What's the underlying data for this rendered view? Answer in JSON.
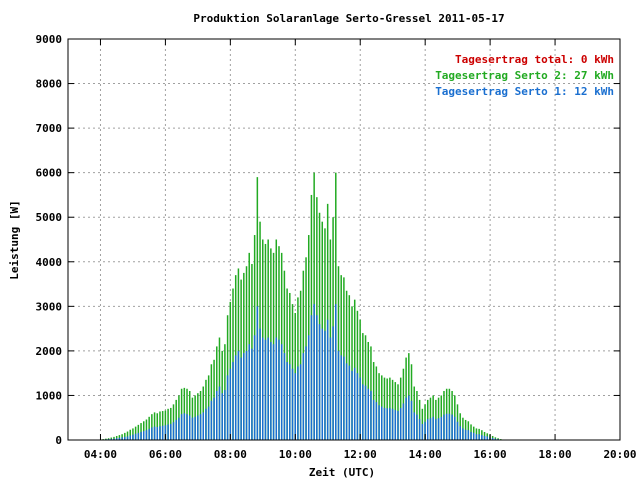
{
  "chart_data": {
    "type": "bar",
    "title": "Produktion Solaranlage Serto-Gressel 2011-05-17",
    "xlabel": "Zeit (UTC)",
    "ylabel": "Leistung [W]",
    "xlim": [
      3.0,
      20.0
    ],
    "ylim": [
      0,
      9000
    ],
    "x_ticks": [
      "04:00",
      "06:00",
      "08:00",
      "10:00",
      "12:00",
      "14:00",
      "16:00",
      "18:00",
      "20:00"
    ],
    "x_tick_values": [
      4,
      6,
      8,
      10,
      12,
      14,
      16,
      18,
      20
    ],
    "y_ticks": [
      "0",
      "1000",
      "2000",
      "3000",
      "4000",
      "5000",
      "6000",
      "7000",
      "8000",
      "9000"
    ],
    "y_tick_values": [
      0,
      1000,
      2000,
      3000,
      4000,
      5000,
      6000,
      7000,
      8000,
      9000
    ],
    "grid": true,
    "legend_position": "top-right",
    "legend": [
      {
        "label": "Tagesertrag total: 0 kWh",
        "color": "#cc0000"
      },
      {
        "label": "Tagesertrag Serto 2: 27 kWh",
        "color": "#22aa22"
      },
      {
        "label": "Tagesertrag Serto 1: 12 kWh",
        "color": "#1a6fd0"
      }
    ],
    "x_start": 4.0,
    "x_step": 0.0833,
    "series": [
      {
        "name": "Serto 2",
        "color": "#22aa22",
        "values": [
          0,
          20,
          30,
          40,
          55,
          70,
          90,
          110,
          130,
          160,
          190,
          230,
          260,
          300,
          340,
          380,
          420,
          460,
          520,
          580,
          620,
          600,
          640,
          650,
          660,
          700,
          720,
          800,
          900,
          1000,
          1150,
          1170,
          1150,
          1100,
          950,
          1000,
          1050,
          1100,
          1200,
          1350,
          1450,
          1700,
          1800,
          2100,
          2300,
          2000,
          2150,
          2800,
          3100,
          3400,
          3700,
          3850,
          3600,
          3750,
          3900,
          4200,
          3950,
          4600,
          5900,
          4900,
          4500,
          4400,
          4500,
          4300,
          4200,
          4500,
          4350,
          4200,
          3800,
          3400,
          3300,
          3050,
          2850,
          3200,
          3350,
          3800,
          4100,
          4600,
          5500,
          6000,
          5450,
          5100,
          4900,
          4750,
          5300,
          4500,
          5000,
          6000,
          3900,
          3700,
          3650,
          3350,
          3250,
          3000,
          3150,
          2900,
          2700,
          2400,
          2350,
          2200,
          2100,
          1750,
          1650,
          1500,
          1450,
          1400,
          1380,
          1400,
          1350,
          1300,
          1250,
          1400,
          1600,
          1850,
          1950,
          1700,
          1200,
          1100,
          900,
          700,
          800,
          900,
          950,
          1000,
          900,
          950,
          1000,
          1100,
          1150,
          1150,
          1100,
          1000,
          800,
          600,
          500,
          450,
          420,
          350,
          300,
          260,
          250,
          220,
          180,
          150,
          120,
          90,
          60,
          40,
          20,
          10
        ]
      },
      {
        "name": "Serto 1",
        "color": "#1a6fd0",
        "values": [
          0,
          10,
          15,
          20,
          25,
          30,
          40,
          50,
          60,
          70,
          80,
          100,
          120,
          140,
          160,
          180,
          200,
          220,
          250,
          280,
          300,
          290,
          310,
          320,
          330,
          350,
          360,
          400,
          450,
          500,
          580,
          600,
          580,
          550,
          500,
          520,
          550,
          580,
          620,
          700,
          750,
          880,
          950,
          1100,
          1200,
          1050,
          1120,
          1450,
          1600,
          1750,
          1900,
          2000,
          1850,
          1950,
          2000,
          2150,
          2050,
          2350,
          3000,
          2500,
          2300,
          2250,
          2300,
          2200,
          2150,
          2300,
          2250,
          2150,
          1950,
          1750,
          1700,
          1600,
          1500,
          1650,
          1700,
          1950,
          2100,
          2350,
          2800,
          3050,
          2800,
          2600,
          2500,
          2450,
          2700,
          2300,
          2550,
          3050,
          2000,
          1900,
          1870,
          1720,
          1670,
          1550,
          1620,
          1500,
          1400,
          1250,
          1220,
          1150,
          1100,
          900,
          850,
          780,
          750,
          720,
          710,
          720,
          700,
          670,
          650,
          720,
          820,
          950,
          1000,
          880,
          620,
          570,
          470,
          360,
          410,
          470,
          490,
          520,
          470,
          490,
          520,
          570,
          590,
          590,
          570,
          520,
          410,
          310,
          260,
          230,
          220,
          180,
          160,
          130,
          130,
          110,
          90,
          80,
          60,
          45,
          30,
          20,
          10,
          5
        ]
      }
    ]
  }
}
